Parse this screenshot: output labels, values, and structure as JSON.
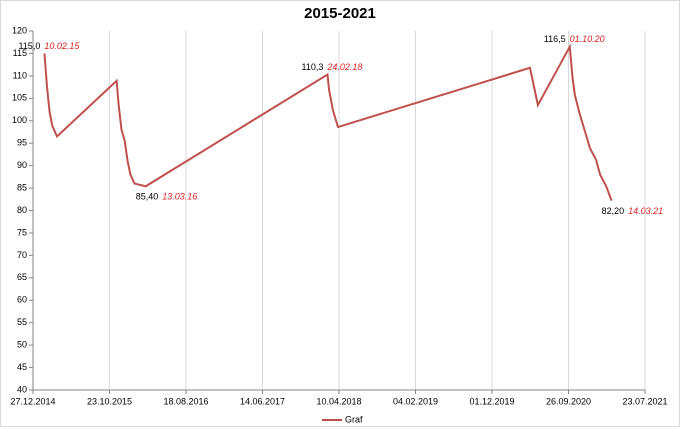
{
  "chart_data": {
    "type": "line",
    "title": "2015-2021",
    "x": [
      "2015-02-10",
      "2015-02-20",
      "2015-03-02",
      "2015-03-12",
      "2015-03-31",
      "2015-11-20",
      "2015-11-27",
      "2015-12-09",
      "2015-12-21",
      "2016-01-02",
      "2016-01-13",
      "2016-01-29",
      "2016-03-13",
      "2018-02-24",
      "2018-03-02",
      "2018-03-17",
      "2018-04-06",
      "2020-04-28",
      "2020-05-29",
      "2020-10-01",
      "2020-10-12",
      "2020-10-21",
      "2020-11-10",
      "2020-12-04",
      "2020-12-19",
      "2021-01-12",
      "2021-01-28",
      "2021-02-20",
      "2021-03-14"
    ],
    "series": [
      {
        "name": "Graf",
        "color": "#c0504d",
        "values": [
          115.0,
          107.5,
          102,
          99,
          96.5,
          108.9,
          104,
          98,
          95.7,
          91,
          88,
          86,
          85.4,
          110.3,
          106.9,
          102.4,
          98.6,
          111.8,
          103.5,
          116.5,
          109.5,
          105.7,
          101.3,
          96.8,
          93.9,
          91.3,
          88,
          85.5,
          82.2
        ],
        "value_labels": [
          "115,0",
          null,
          null,
          null,
          null,
          null,
          null,
          null,
          null,
          null,
          null,
          null,
          "85,40",
          "110,3",
          null,
          null,
          null,
          null,
          null,
          "116,5",
          null,
          null,
          null,
          null,
          null,
          null,
          null,
          null,
          "82,20"
        ],
        "date_labels": [
          "10.02.15",
          null,
          null,
          null,
          null,
          null,
          null,
          null,
          null,
          null,
          null,
          null,
          "13.03.16",
          "24.02.18",
          null,
          null,
          null,
          null,
          null,
          "01.10.20",
          null,
          null,
          null,
          null,
          null,
          null,
          null,
          null,
          "14.03.21"
        ]
      }
    ],
    "xlim": [
      "2014-12-27",
      "2021-07-23"
    ],
    "xticks": [
      {
        "value": "2014-12-27",
        "label": "27.12.2014"
      },
      {
        "value": "2015-10-23",
        "label": "23.10.2015"
      },
      {
        "value": "2016-08-18",
        "label": "18.08.2016"
      },
      {
        "value": "2017-06-14",
        "label": "14.06.2017"
      },
      {
        "value": "2018-04-10",
        "label": "10.04.2018"
      },
      {
        "value": "2019-02-04",
        "label": "04.02.2019"
      },
      {
        "value": "2019-12-01",
        "label": "01.12.2019"
      },
      {
        "value": "2020-09-26",
        "label": "26.09.2020"
      },
      {
        "value": "2021-07-23",
        "label": "23.07.2021"
      }
    ],
    "ylim": [
      40,
      120
    ],
    "yticks": [
      40,
      45,
      50,
      55,
      60,
      65,
      70,
      75,
      80,
      85,
      90,
      95,
      100,
      105,
      110,
      115,
      120
    ],
    "grid": "x",
    "legend": "bottom"
  }
}
